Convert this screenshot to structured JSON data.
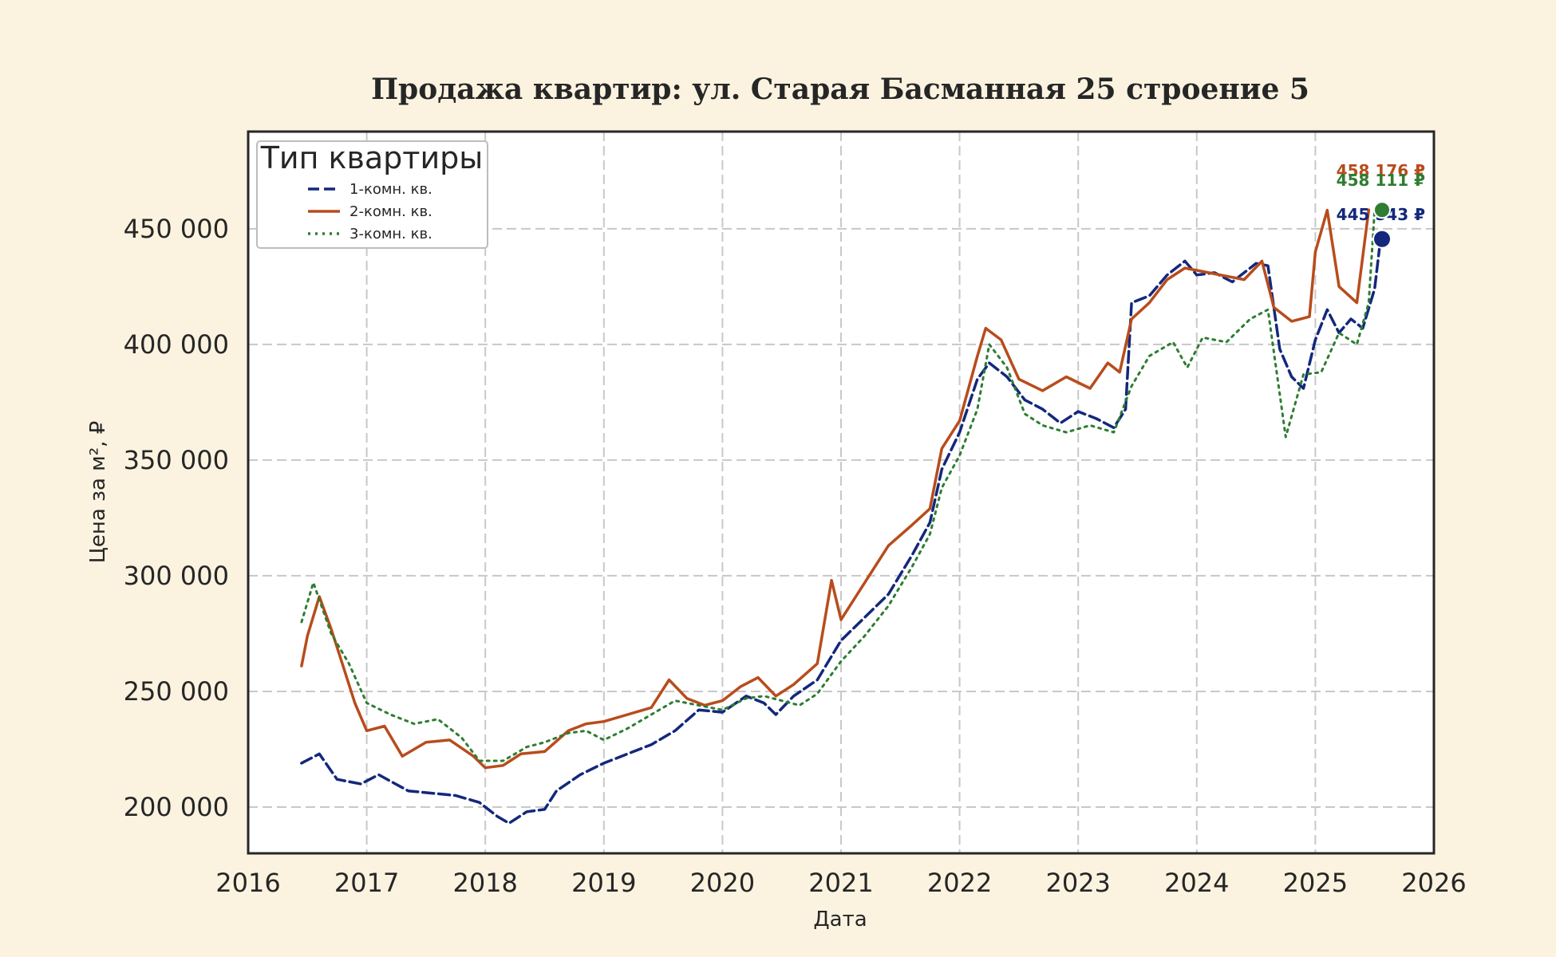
{
  "chart_data": {
    "type": "line",
    "title": "Продажа квартир: ул. Старая Басманная 25 строение 5",
    "xlabel": "Дата",
    "ylabel": "Цена за м², ₽",
    "x_ticks": [
      "2016",
      "2017",
      "2018",
      "2019",
      "2020",
      "2021",
      "2022",
      "2023",
      "2024",
      "2025",
      "2026"
    ],
    "y_ticks": [
      "200 000",
      "250 000",
      "300 000",
      "350 000",
      "400 000",
      "450 000"
    ],
    "xlim": [
      2016.0,
      2026.0
    ],
    "ylim": [
      180000,
      492000
    ],
    "grid": true,
    "legend": {
      "title": "Тип квартиры",
      "placement": "top-left",
      "entries": [
        "1-комн. кв.",
        "2-комн. кв.",
        "3-комн. кв."
      ]
    },
    "series": [
      {
        "name": "1-комн. кв.",
        "color": "#13287c",
        "style": "dashed",
        "last_value": 445543,
        "last_label": "445 543 ₽",
        "points": [
          [
            2016.45,
            219000
          ],
          [
            2016.6,
            223000
          ],
          [
            2016.75,
            212000
          ],
          [
            2016.95,
            210000
          ],
          [
            2017.1,
            214000
          ],
          [
            2017.35,
            207000
          ],
          [
            2017.55,
            206000
          ],
          [
            2017.75,
            205000
          ],
          [
            2017.95,
            202000
          ],
          [
            2018.1,
            196000
          ],
          [
            2018.2,
            193000
          ],
          [
            2018.35,
            198000
          ],
          [
            2018.5,
            199000
          ],
          [
            2018.6,
            207000
          ],
          [
            2018.8,
            214000
          ],
          [
            2019.0,
            219000
          ],
          [
            2019.2,
            223000
          ],
          [
            2019.4,
            227000
          ],
          [
            2019.6,
            233000
          ],
          [
            2019.8,
            242000
          ],
          [
            2020.0,
            241000
          ],
          [
            2020.2,
            248000
          ],
          [
            2020.35,
            245000
          ],
          [
            2020.45,
            240000
          ],
          [
            2020.6,
            248000
          ],
          [
            2020.8,
            255000
          ],
          [
            2021.0,
            272000
          ],
          [
            2021.2,
            282000
          ],
          [
            2021.4,
            292000
          ],
          [
            2021.6,
            309000
          ],
          [
            2021.75,
            323000
          ],
          [
            2021.85,
            346000
          ],
          [
            2022.0,
            362000
          ],
          [
            2022.15,
            385000
          ],
          [
            2022.25,
            392000
          ],
          [
            2022.4,
            386000
          ],
          [
            2022.55,
            376000
          ],
          [
            2022.7,
            372000
          ],
          [
            2022.85,
            366000
          ],
          [
            2023.0,
            371000
          ],
          [
            2023.15,
            368000
          ],
          [
            2023.3,
            364000
          ],
          [
            2023.4,
            372000
          ],
          [
            2023.45,
            418000
          ],
          [
            2023.6,
            421000
          ],
          [
            2023.75,
            430000
          ],
          [
            2023.9,
            436000
          ],
          [
            2024.0,
            430000
          ],
          [
            2024.15,
            431000
          ],
          [
            2024.3,
            427000
          ],
          [
            2024.5,
            435000
          ],
          [
            2024.6,
            434000
          ],
          [
            2024.7,
            398000
          ],
          [
            2024.8,
            386000
          ],
          [
            2024.9,
            381000
          ],
          [
            2025.0,
            402000
          ],
          [
            2025.1,
            415000
          ],
          [
            2025.2,
            405000
          ],
          [
            2025.3,
            411000
          ],
          [
            2025.4,
            407000
          ],
          [
            2025.5,
            424000
          ],
          [
            2025.55,
            445543
          ]
        ]
      },
      {
        "name": "2-комн. кв.",
        "color": "#b84c1c",
        "style": "solid",
        "last_value": 458176,
        "last_label": "458 176 ₽",
        "points": [
          [
            2016.45,
            261000
          ],
          [
            2016.5,
            274000
          ],
          [
            2016.6,
            291000
          ],
          [
            2016.7,
            277000
          ],
          [
            2016.8,
            261000
          ],
          [
            2016.9,
            245000
          ],
          [
            2017.0,
            233000
          ],
          [
            2017.15,
            235000
          ],
          [
            2017.3,
            222000
          ],
          [
            2017.5,
            228000
          ],
          [
            2017.7,
            229000
          ],
          [
            2017.9,
            222000
          ],
          [
            2018.0,
            217000
          ],
          [
            2018.15,
            218000
          ],
          [
            2018.3,
            223000
          ],
          [
            2018.5,
            224000
          ],
          [
            2018.7,
            233000
          ],
          [
            2018.85,
            236000
          ],
          [
            2019.0,
            237000
          ],
          [
            2019.2,
            240000
          ],
          [
            2019.4,
            243000
          ],
          [
            2019.55,
            255000
          ],
          [
            2019.7,
            247000
          ],
          [
            2019.85,
            244000
          ],
          [
            2020.0,
            246000
          ],
          [
            2020.15,
            252000
          ],
          [
            2020.3,
            256000
          ],
          [
            2020.45,
            248000
          ],
          [
            2020.6,
            253000
          ],
          [
            2020.8,
            262000
          ],
          [
            2020.92,
            298000
          ],
          [
            2021.0,
            281000
          ],
          [
            2021.2,
            297000
          ],
          [
            2021.4,
            313000
          ],
          [
            2021.6,
            322000
          ],
          [
            2021.75,
            329000
          ],
          [
            2021.85,
            355000
          ],
          [
            2022.0,
            367000
          ],
          [
            2022.15,
            395000
          ],
          [
            2022.22,
            407000
          ],
          [
            2022.35,
            402000
          ],
          [
            2022.5,
            385000
          ],
          [
            2022.7,
            380000
          ],
          [
            2022.9,
            386000
          ],
          [
            2023.1,
            381000
          ],
          [
            2023.25,
            392000
          ],
          [
            2023.35,
            388000
          ],
          [
            2023.45,
            411000
          ],
          [
            2023.6,
            418000
          ],
          [
            2023.75,
            428000
          ],
          [
            2023.9,
            433000
          ],
          [
            2024.0,
            432000
          ],
          [
            2024.2,
            430000
          ],
          [
            2024.4,
            428000
          ],
          [
            2024.55,
            436000
          ],
          [
            2024.65,
            416000
          ],
          [
            2024.8,
            410000
          ],
          [
            2024.95,
            412000
          ],
          [
            2025.0,
            440000
          ],
          [
            2025.1,
            458000
          ],
          [
            2025.2,
            425000
          ],
          [
            2025.35,
            418000
          ],
          [
            2025.45,
            458176
          ]
        ]
      },
      {
        "name": "3-комн. кв.",
        "color": "#2e7d32",
        "style": "dotted",
        "last_value": 458111,
        "last_label": "458 111 ₽",
        "points": [
          [
            2016.45,
            280000
          ],
          [
            2016.55,
            297000
          ],
          [
            2016.7,
            275000
          ],
          [
            2016.85,
            262000
          ],
          [
            2017.0,
            245000
          ],
          [
            2017.2,
            240000
          ],
          [
            2017.4,
            236000
          ],
          [
            2017.6,
            238000
          ],
          [
            2017.8,
            230000
          ],
          [
            2017.95,
            220000
          ],
          [
            2018.15,
            220000
          ],
          [
            2018.35,
            226000
          ],
          [
            2018.5,
            228000
          ],
          [
            2018.7,
            232000
          ],
          [
            2018.85,
            233000
          ],
          [
            2019.0,
            229000
          ],
          [
            2019.2,
            234000
          ],
          [
            2019.4,
            240000
          ],
          [
            2019.6,
            246000
          ],
          [
            2019.8,
            244000
          ],
          [
            2020.0,
            242000
          ],
          [
            2020.2,
            247000
          ],
          [
            2020.35,
            248000
          ],
          [
            2020.5,
            246000
          ],
          [
            2020.65,
            244000
          ],
          [
            2020.8,
            249000
          ],
          [
            2021.0,
            263000
          ],
          [
            2021.2,
            274000
          ],
          [
            2021.4,
            287000
          ],
          [
            2021.6,
            304000
          ],
          [
            2021.75,
            318000
          ],
          [
            2021.85,
            338000
          ],
          [
            2022.0,
            352000
          ],
          [
            2022.15,
            372000
          ],
          [
            2022.25,
            400000
          ],
          [
            2022.4,
            390000
          ],
          [
            2022.55,
            370000
          ],
          [
            2022.7,
            365000
          ],
          [
            2022.9,
            362000
          ],
          [
            2023.1,
            365000
          ],
          [
            2023.3,
            362000
          ],
          [
            2023.45,
            382000
          ],
          [
            2023.6,
            395000
          ],
          [
            2023.8,
            401000
          ],
          [
            2023.92,
            390000
          ],
          [
            2024.05,
            403000
          ],
          [
            2024.25,
            401000
          ],
          [
            2024.45,
            411000
          ],
          [
            2024.6,
            415000
          ],
          [
            2024.75,
            360000
          ],
          [
            2024.9,
            387000
          ],
          [
            2025.05,
            388000
          ],
          [
            2025.2,
            405000
          ],
          [
            2025.35,
            400000
          ],
          [
            2025.45,
            418000
          ],
          [
            2025.5,
            458111
          ]
        ]
      }
    ]
  }
}
